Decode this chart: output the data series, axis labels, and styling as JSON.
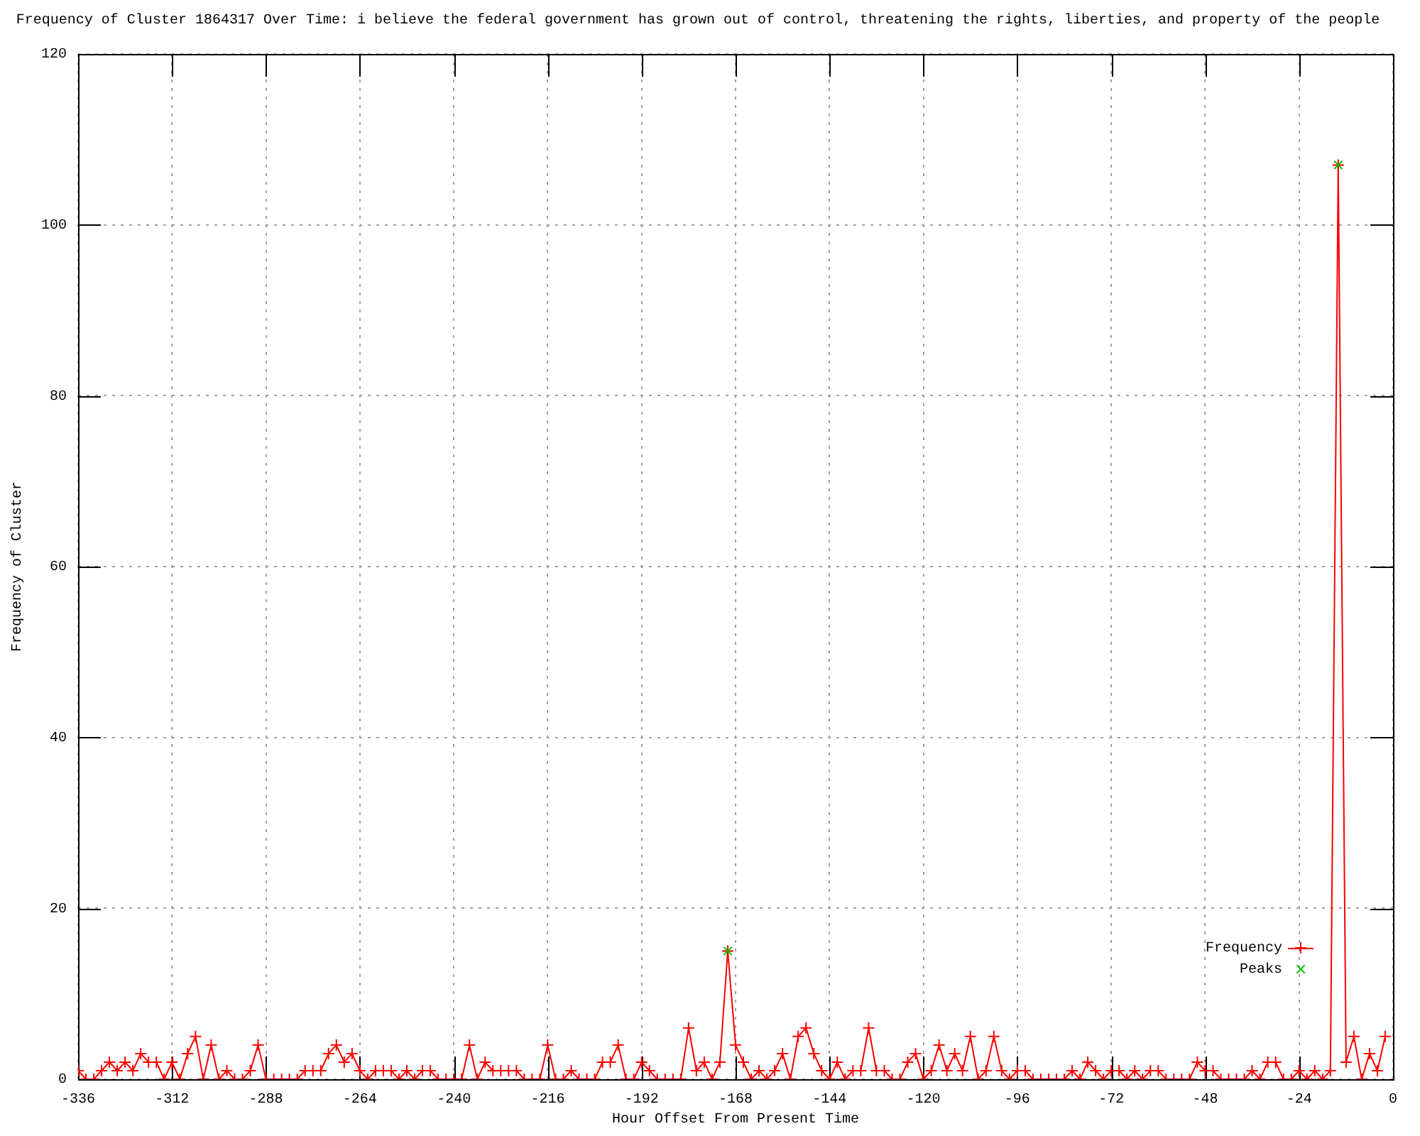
{
  "chart_data": {
    "type": "line",
    "title": "Frequency of Cluster 1864317 Over Time: i believe the federal government has grown out of control, threatening the rights, liberties, and property of the people",
    "xlabel": "Hour Offset From Present Time",
    "ylabel": "Frequency of Cluster",
    "x": [
      -336,
      -334,
      -332,
      -330,
      -328,
      -326,
      -324,
      -322,
      -320,
      -318,
      -316,
      -314,
      -312,
      -310,
      -308,
      -306,
      -304,
      -302,
      -300,
      -298,
      -296,
      -294,
      -292,
      -290,
      -288,
      -286,
      -284,
      -282,
      -280,
      -278,
      -276,
      -274,
      -272,
      -270,
      -268,
      -266,
      -264,
      -262,
      -260,
      -258,
      -256,
      -254,
      -252,
      -250,
      -248,
      -246,
      -244,
      -242,
      -240,
      -238,
      -236,
      -234,
      -232,
      -230,
      -228,
      -226,
      -224,
      -222,
      -220,
      -218,
      -216,
      -214,
      -212,
      -210,
      -208,
      -206,
      -204,
      -202,
      -200,
      -198,
      -196,
      -194,
      -192,
      -190,
      -188,
      -186,
      -184,
      -182,
      -180,
      -178,
      -176,
      -174,
      -172,
      -170,
      -168,
      -166,
      -164,
      -162,
      -160,
      -158,
      -156,
      -154,
      -152,
      -150,
      -148,
      -146,
      -144,
      -142,
      -140,
      -138,
      -136,
      -134,
      -132,
      -130,
      -128,
      -126,
      -124,
      -122,
      -120,
      -118,
      -116,
      -114,
      -112,
      -110,
      -108,
      -106,
      -104,
      -102,
      -100,
      -98,
      -96,
      -94,
      -92,
      -90,
      -88,
      -86,
      -84,
      -82,
      -80,
      -78,
      -76,
      -74,
      -72,
      -70,
      -68,
      -66,
      -64,
      -62,
      -60,
      -58,
      -56,
      -54,
      -52,
      -50,
      -48,
      -46,
      -44,
      -42,
      -40,
      -38,
      -36,
      -34,
      -32,
      -30,
      -28,
      -26,
      -24,
      -22,
      -20,
      -18,
      -16,
      -14,
      -12,
      -10,
      -8,
      -6,
      -4,
      -2
    ],
    "series": [
      {
        "name": "Frequency",
        "color": "#ff0000",
        "values": [
          1,
          0,
          0,
          1,
          2,
          1,
          2,
          1,
          3,
          2,
          2,
          0,
          2,
          0,
          3,
          5,
          0,
          4,
          0,
          1,
          0,
          0,
          1,
          4,
          0,
          0,
          0,
          0,
          0,
          1,
          1,
          1,
          3,
          4,
          2,
          3,
          1,
          0,
          1,
          1,
          1,
          0,
          1,
          0,
          1,
          1,
          0,
          0,
          0,
          0,
          4,
          0,
          2,
          1,
          1,
          1,
          1,
          0,
          0,
          0,
          4,
          0,
          0,
          1,
          0,
          0,
          0,
          2,
          2,
          4,
          0,
          0,
          2,
          1,
          0,
          0,
          0,
          0,
          6,
          1,
          2,
          0,
          2,
          15,
          4,
          2,
          0,
          1,
          0,
          1,
          3,
          0,
          5,
          6,
          3,
          1,
          0,
          2,
          0,
          1,
          1,
          6,
          1,
          1,
          0,
          0,
          2,
          3,
          0,
          1,
          4,
          1,
          3,
          1,
          5,
          0,
          1,
          5,
          1,
          0,
          1,
          1,
          0,
          0,
          0,
          0,
          0,
          1,
          0,
          2,
          1,
          0,
          1,
          1,
          0,
          1,
          0,
          1,
          1,
          0,
          0,
          0,
          0,
          2,
          1,
          1,
          0,
          0,
          0,
          0,
          1,
          0,
          2,
          2,
          0,
          0,
          1,
          0,
          1,
          0,
          1,
          107,
          2,
          5,
          0,
          3,
          1,
          5
        ]
      },
      {
        "name": "Peaks",
        "type": "scatter",
        "color": "#00c000",
        "x": [
          -170,
          -14
        ],
        "values": [
          15,
          107
        ]
      }
    ],
    "xlim": [
      -336,
      0
    ],
    "xticks": [
      -336,
      -312,
      -288,
      -264,
      -240,
      -216,
      -192,
      -168,
      -144,
      -120,
      -96,
      -72,
      -48,
      -24,
      0
    ],
    "ylim": [
      0,
      120
    ],
    "yticks": [
      0,
      20,
      40,
      60,
      80,
      100,
      120
    ],
    "grid": true,
    "legend": "bottom right",
    "marker": "cross",
    "line_style": "solid"
  }
}
